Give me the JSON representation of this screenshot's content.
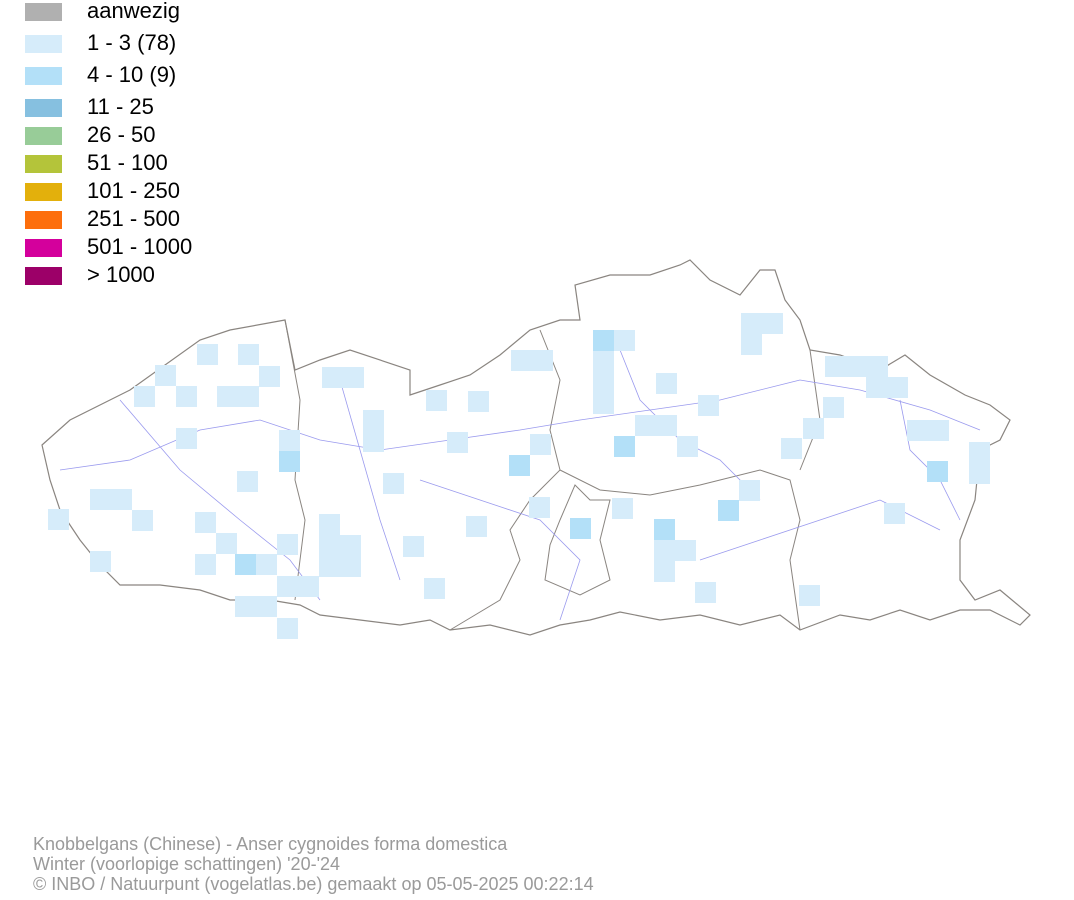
{
  "legend": {
    "items": [
      {
        "label": "aanwezig",
        "color": "#b0b0b0"
      },
      {
        "label": "1 - 3 (78)",
        "color": "#d6ecfa"
      },
      {
        "label": "4 - 10 (9)",
        "color": "#b3e0f8"
      },
      {
        "label": "11 - 25",
        "color": "#86c0e0"
      },
      {
        "label": "26 - 50",
        "color": "#98cc98"
      },
      {
        "label": "51 - 100",
        "color": "#b4c43a"
      },
      {
        "label": "101 - 250",
        "color": "#e3b00c"
      },
      {
        "label": "251 - 500",
        "color": "#fd6e0c"
      },
      {
        "label": "501 - 1000",
        "color": "#d4009c"
      },
      {
        "label": "> 1000",
        "color": "#9c0068"
      }
    ]
  },
  "footer": {
    "lines": [
      "Knobbelgans (Chinese) - Anser cygnoides forma domestica",
      "Winter (voorlopige schattingen) '20-'24",
      "© INBO / Natuurpunt (vogelatlas.be) gemaakt op 05-05-2025 00:22:14"
    ]
  }
}
